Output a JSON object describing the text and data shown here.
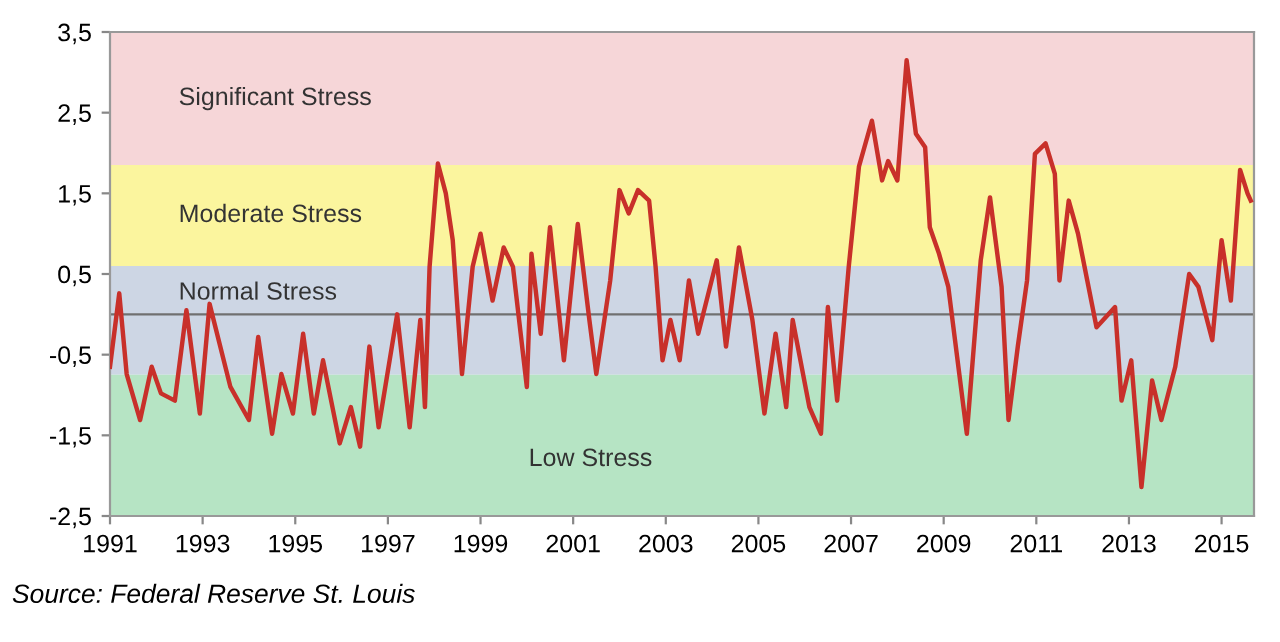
{
  "chart_data": {
    "type": "line",
    "x": [
      1991.0,
      1991.2,
      1991.36,
      1991.65,
      1991.9,
      1992.1,
      1992.4,
      1992.65,
      1992.94,
      1993.15,
      1993.6,
      1994.0,
      1994.2,
      1994.5,
      1994.7,
      1994.95,
      1995.17,
      1995.4,
      1995.6,
      1995.96,
      1996.2,
      1996.4,
      1996.6,
      1996.8,
      1997.2,
      1997.47,
      1997.7,
      1997.8,
      1997.9,
      1998.08,
      1998.25,
      1998.4,
      1998.6,
      1998.83,
      1999.0,
      1999.26,
      1999.5,
      1999.7,
      2000.0,
      2000.1,
      2000.3,
      2000.5,
      2000.8,
      2001.1,
      2001.35,
      2001.5,
      2001.8,
      2002.0,
      2002.2,
      2002.4,
      2002.64,
      2002.78,
      2002.93,
      2003.1,
      2003.3,
      2003.5,
      2003.7,
      2004.1,
      2004.3,
      2004.58,
      2004.87,
      2005.13,
      2005.37,
      2005.6,
      2005.74,
      2006.1,
      2006.35,
      2006.5,
      2006.7,
      2006.95,
      2007.17,
      2007.45,
      2007.67,
      2007.8,
      2008.0,
      2008.2,
      2008.4,
      2008.6,
      2008.7,
      2008.9,
      2009.1,
      2009.5,
      2009.8,
      2010.0,
      2010.25,
      2010.4,
      2010.6,
      2010.8,
      2010.97,
      2011.2,
      2011.4,
      2011.5,
      2011.7,
      2011.9,
      2012.1,
      2012.3,
      2012.7,
      2012.84,
      2013.05,
      2013.27,
      2013.5,
      2013.7,
      2014.0,
      2014.3,
      2014.5,
      2014.8,
      2015.0,
      2015.2,
      2015.4,
      2015.56,
      2015.63
    ],
    "series": [
      {
        "color": "#c8302a",
        "values": [
          -0.65,
          0.26,
          -0.74,
          -1.31,
          -0.65,
          -0.98,
          -1.07,
          0.05,
          -1.23,
          0.13,
          -0.9,
          -1.31,
          -0.28,
          -1.48,
          -0.74,
          -1.23,
          -0.24,
          -1.23,
          -0.57,
          -1.6,
          -1.15,
          -1.64,
          -0.4,
          -1.4,
          0.0,
          -1.4,
          -0.07,
          -1.15,
          0.59,
          1.87,
          1.5,
          0.92,
          -0.74,
          0.59,
          1.0,
          0.17,
          0.83,
          0.59,
          -0.9,
          0.75,
          -0.24,
          1.08,
          -0.57,
          1.12,
          -0.07,
          -0.74,
          0.42,
          1.54,
          1.25,
          1.54,
          1.41,
          0.59,
          -0.57,
          -0.07,
          -0.57,
          0.42,
          -0.24,
          0.67,
          -0.4,
          0.83,
          -0.07,
          -1.23,
          -0.24,
          -1.15,
          -0.07,
          -1.15,
          -1.48,
          0.09,
          -1.07,
          0.59,
          1.83,
          2.4,
          1.66,
          1.9,
          1.66,
          3.15,
          2.24,
          2.07,
          1.08,
          0.75,
          0.34,
          -1.48,
          0.67,
          1.45,
          0.34,
          -1.31,
          -0.4,
          0.42,
          1.99,
          2.12,
          1.74,
          0.42,
          1.41,
          1.0,
          0.42,
          -0.16,
          0.09,
          -1.07,
          -0.57,
          -2.14,
          -0.82,
          -1.31,
          -0.65,
          0.5,
          0.34,
          -0.32,
          0.92,
          0.17,
          1.79,
          1.5,
          1.41
        ]
      }
    ],
    "xlim": [
      1991,
      2015.7
    ],
    "xticks": [
      1991,
      1993,
      1995,
      1997,
      1999,
      2001,
      2003,
      2005,
      2007,
      2009,
      2011,
      2013,
      2015
    ],
    "ylim": [
      -2.5,
      3.5
    ],
    "yticks": [
      {
        "value": 3.5,
        "label": "3,5"
      },
      {
        "value": 2.5,
        "label": "2,5"
      },
      {
        "value": 1.5,
        "label": "1,5"
      },
      {
        "value": 0.5,
        "label": "0,5"
      },
      {
        "value": -0.5,
        "label": "-0,5"
      },
      {
        "value": -1.5,
        "label": "-1,5"
      },
      {
        "value": -2.5,
        "label": "-2,5"
      }
    ],
    "bands": [
      {
        "axis": "y",
        "from": 1.85,
        "to": 3.5,
        "label": "Significant Stress",
        "color": "#f6d6d8"
      },
      {
        "axis": "y",
        "from": 0.6,
        "to": 1.85,
        "label": "Moderate Stress",
        "color": "#fbf59e"
      },
      {
        "axis": "y",
        "from": -0.75,
        "to": 0.6,
        "label": "Normal Stress",
        "color": "#cdd6e4"
      },
      {
        "axis": "y",
        "from": -2.5,
        "to": -0.75,
        "label": "Low Stress",
        "color": "#b6e4c4"
      }
    ],
    "ref_lines": [
      {
        "axis": "y",
        "value": 0,
        "color": "#707070"
      }
    ],
    "annotations": [
      "Source: Federal Reserve St. Louis"
    ],
    "grid": false,
    "legend": false
  }
}
